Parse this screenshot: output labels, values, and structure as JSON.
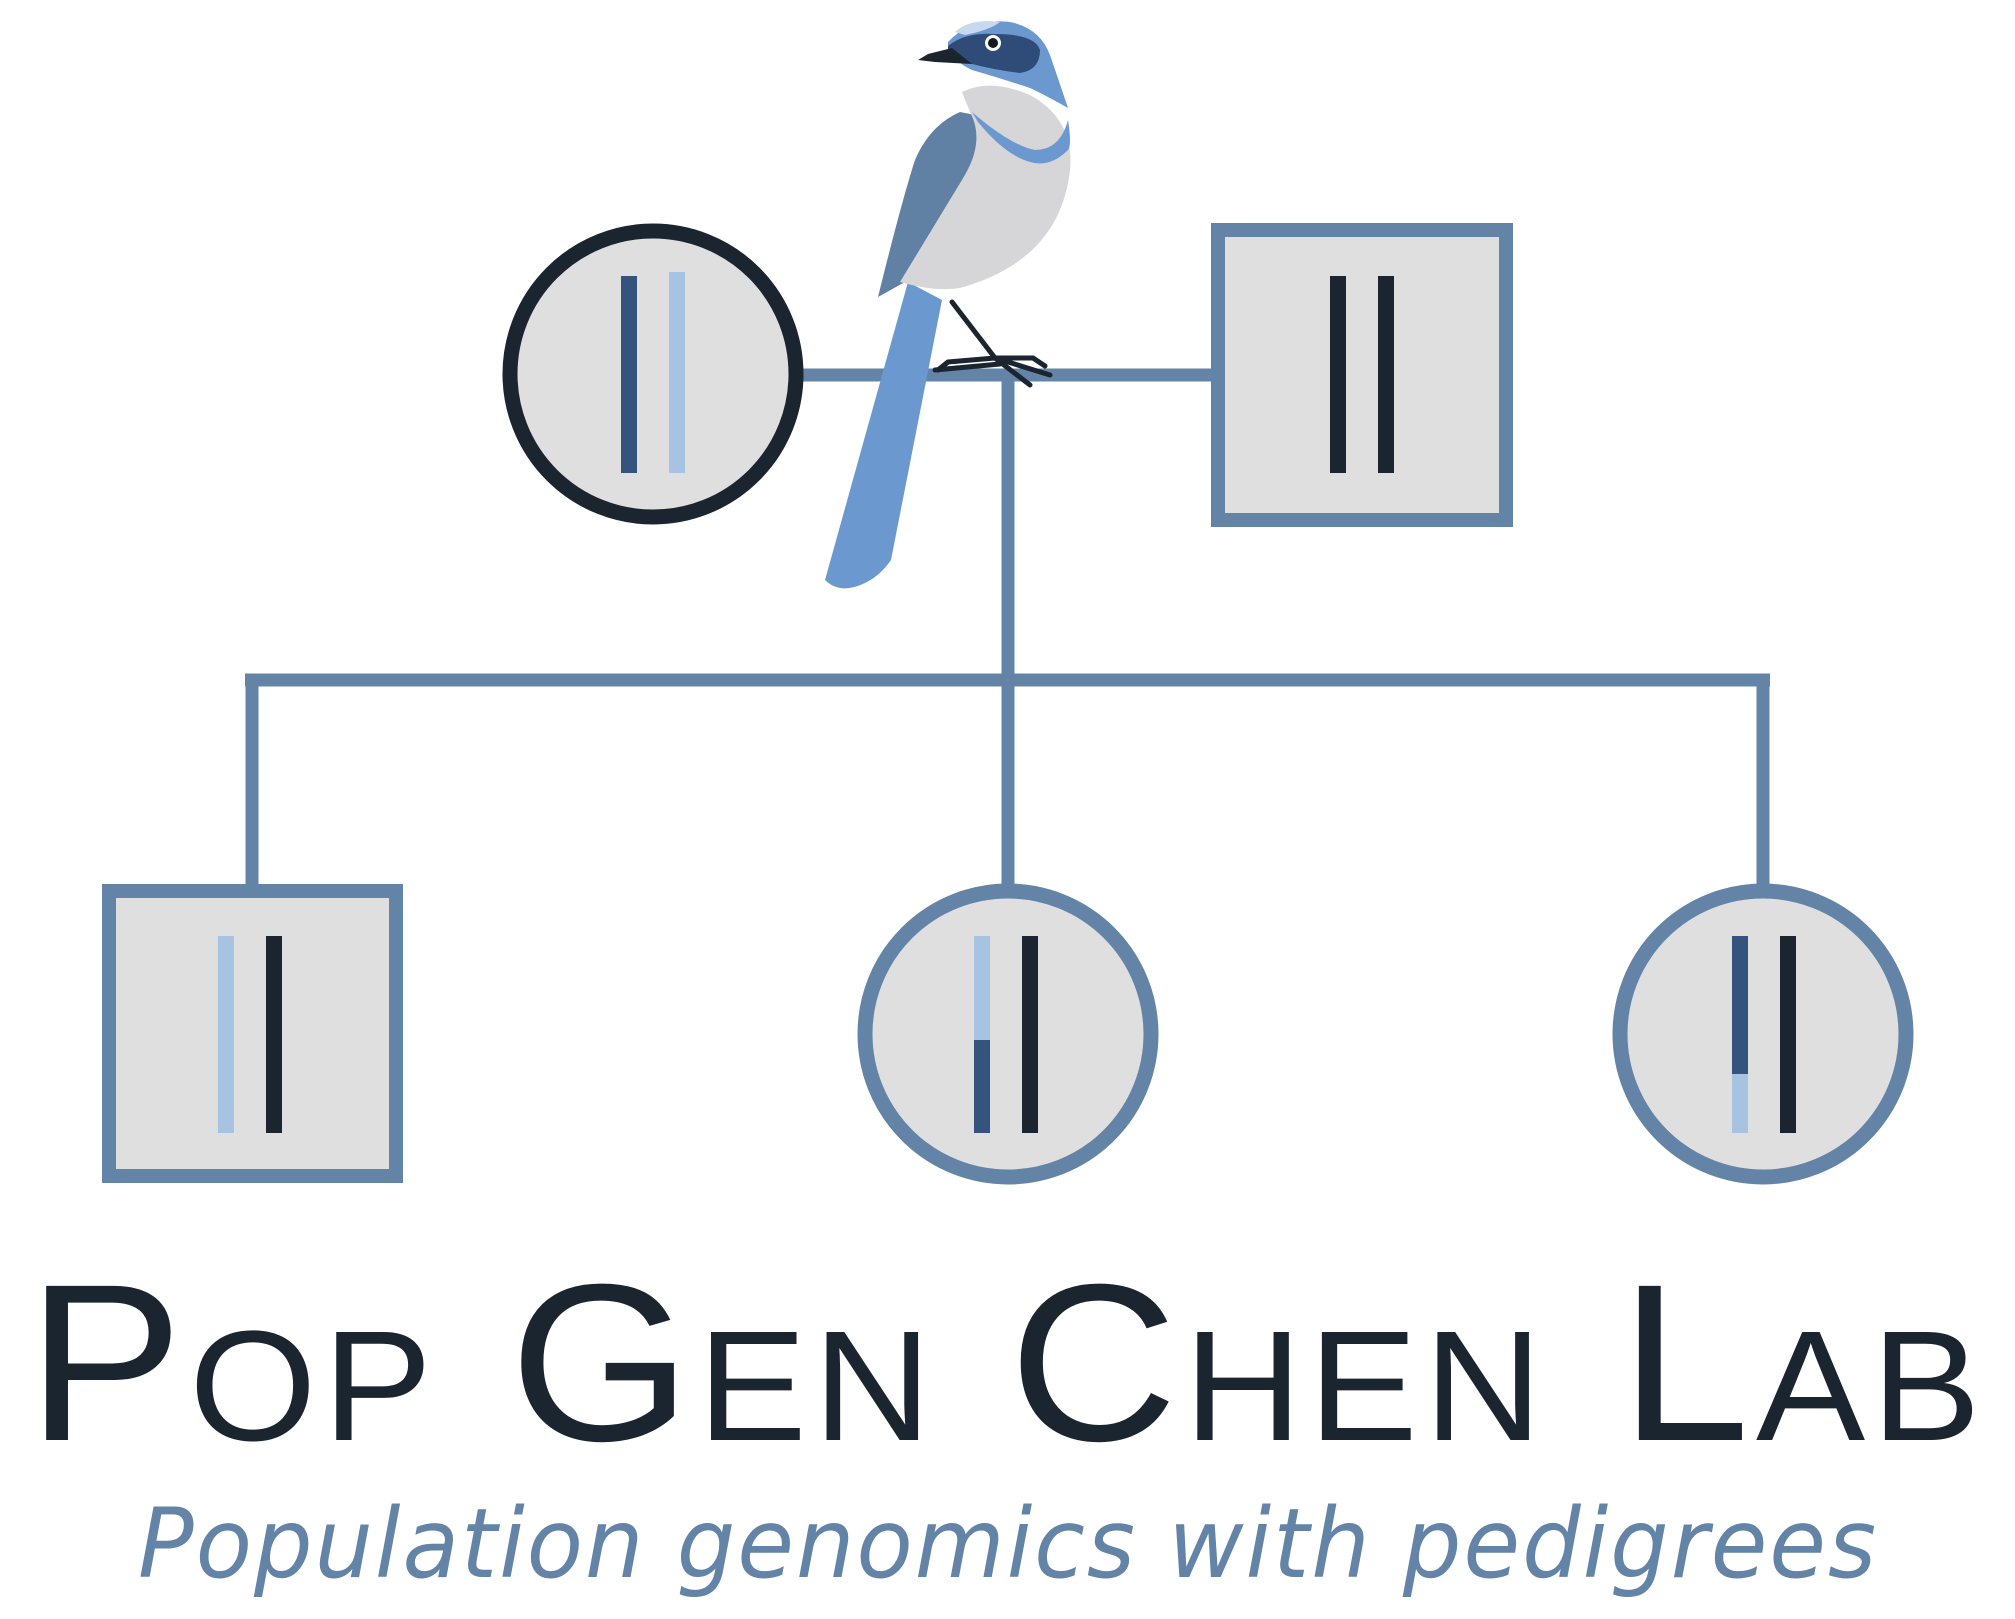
{
  "title": "Pop Gen Chen Lab",
  "tagline": "Population genomics with pedigrees",
  "colors": {
    "dark": "#1b2530",
    "steel": "#6384a6",
    "fill": "#dfdfdf",
    "chrom_dark_blue": "#34547e",
    "chrom_light_blue": "#a7c3e2",
    "bird_blue": "#6b99cf",
    "bird_back": "#6080a4",
    "bird_body": "#d6d6d8",
    "background": "#ffffff"
  },
  "icons": {
    "bird": "scrub-jay-icon"
  }
}
